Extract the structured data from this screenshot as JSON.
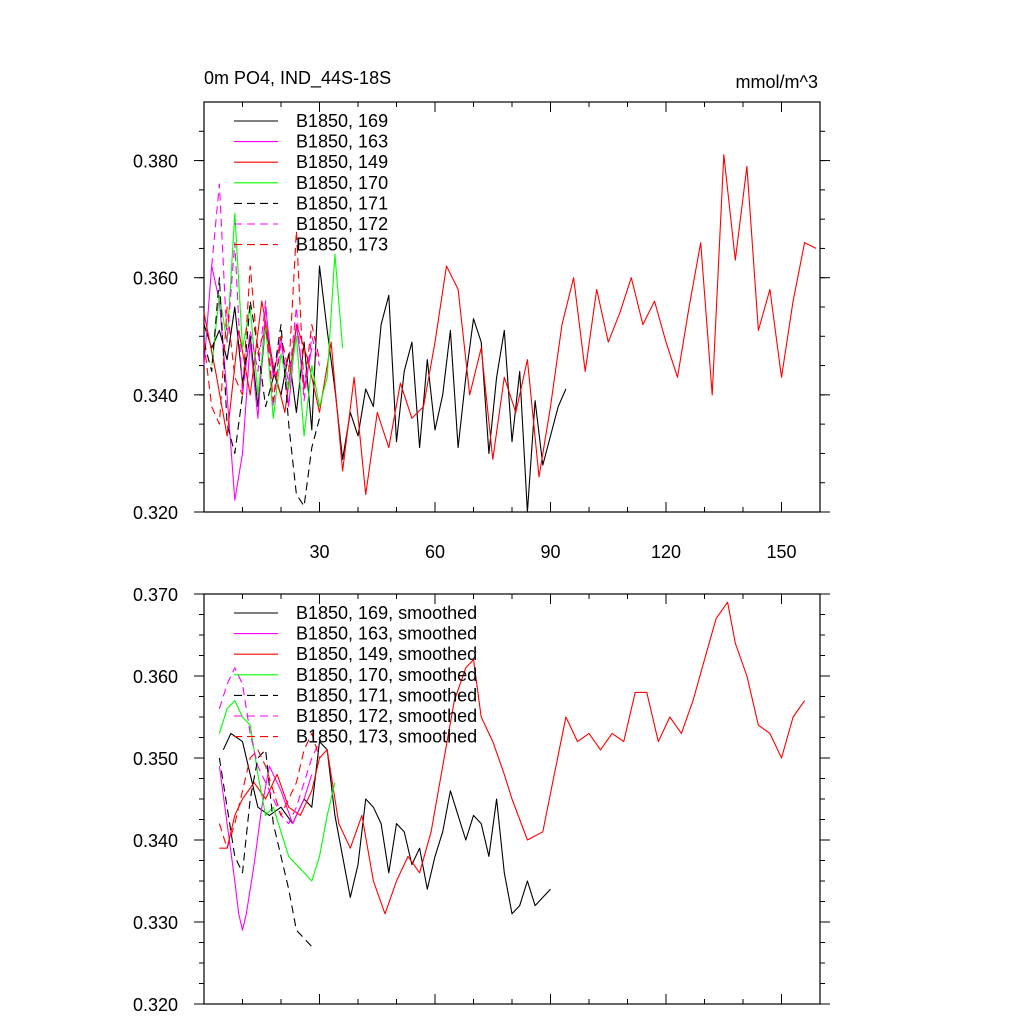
{
  "chart_data": [
    {
      "type": "line",
      "title": "0m PO4, IND_44S-18S",
      "units": "mmol/m^3",
      "xlim": [
        0,
        160
      ],
      "ylim": [
        0.32,
        0.39
      ],
      "xticks": [
        30,
        60,
        90,
        120,
        150
      ],
      "xtick_labels": [
        "30",
        "60",
        "90",
        "120",
        "150"
      ],
      "yticks": [
        0.32,
        0.34,
        0.36,
        0.38
      ],
      "ytick_labels": [
        "0.320",
        "0.340",
        "0.360",
        "0.380"
      ],
      "series": [
        {
          "name": "B1850, 169",
          "color": "#000000",
          "dash": "solid",
          "x": [
            0,
            2,
            4,
            6,
            8,
            10,
            12,
            14,
            16,
            18,
            20,
            22,
            24,
            26,
            28,
            30,
            32,
            34,
            36,
            38,
            40,
            42,
            44,
            46,
            48,
            50,
            52,
            54,
            56,
            58,
            60,
            62,
            64,
            66,
            68,
            70,
            72,
            74,
            76,
            78,
            80,
            82,
            84,
            86,
            88,
            90,
            92,
            94
          ],
          "y": [
            0.352,
            0.348,
            0.351,
            0.346,
            0.355,
            0.342,
            0.35,
            0.338,
            0.352,
            0.344,
            0.34,
            0.347,
            0.337,
            0.349,
            0.334,
            0.362,
            0.351,
            0.341,
            0.329,
            0.337,
            0.333,
            0.341,
            0.338,
            0.352,
            0.357,
            0.332,
            0.344,
            0.349,
            0.331,
            0.346,
            0.334,
            0.34,
            0.351,
            0.331,
            0.343,
            0.353,
            0.349,
            0.33,
            0.343,
            0.351,
            0.332,
            0.344,
            0.32,
            0.339,
            0.328,
            0.333,
            0.338,
            0.341
          ]
        },
        {
          "name": "B1850, 163",
          "color": "#ff00ff",
          "dash": "solid",
          "x": [
            0,
            2,
            4,
            6,
            8,
            10,
            12,
            14,
            16,
            18,
            20,
            22,
            24,
            26,
            28
          ],
          "y": [
            0.345,
            0.362,
            0.356,
            0.34,
            0.322,
            0.33,
            0.349,
            0.336,
            0.355,
            0.343,
            0.35,
            0.338,
            0.352,
            0.341,
            0.348
          ]
        },
        {
          "name": "B1850, 149",
          "color": "#ff0000",
          "dash": "solid",
          "x": [
            0,
            3,
            6,
            9,
            12,
            15,
            18,
            21,
            24,
            27,
            30,
            33,
            36,
            39,
            42,
            45,
            48,
            51,
            54,
            57,
            60,
            63,
            66,
            69,
            72,
            75,
            78,
            81,
            84,
            87,
            90,
            93,
            96,
            99,
            102,
            105,
            108,
            111,
            114,
            117,
            120,
            123,
            126,
            129,
            132,
            135,
            138,
            141,
            144,
            147,
            150,
            153,
            156,
            159
          ],
          "y": [
            0.354,
            0.344,
            0.333,
            0.351,
            0.34,
            0.356,
            0.345,
            0.337,
            0.352,
            0.346,
            0.337,
            0.349,
            0.327,
            0.343,
            0.323,
            0.337,
            0.331,
            0.342,
            0.336,
            0.338,
            0.349,
            0.362,
            0.358,
            0.34,
            0.348,
            0.329,
            0.343,
            0.337,
            0.346,
            0.326,
            0.338,
            0.352,
            0.36,
            0.344,
            0.358,
            0.349,
            0.354,
            0.36,
            0.352,
            0.356,
            0.349,
            0.343,
            0.355,
            0.366,
            0.34,
            0.381,
            0.363,
            0.379,
            0.351,
            0.358,
            0.343,
            0.356,
            0.366,
            0.365
          ]
        },
        {
          "name": "B1850, 170",
          "color": "#00ff00",
          "dash": "solid",
          "x": [
            2,
            4,
            6,
            8,
            10,
            12,
            14,
            16,
            18,
            20,
            22,
            24,
            26,
            28,
            30,
            32,
            34,
            36
          ],
          "y": [
            0.345,
            0.357,
            0.349,
            0.371,
            0.348,
            0.355,
            0.34,
            0.352,
            0.336,
            0.347,
            0.341,
            0.35,
            0.333,
            0.345,
            0.338,
            0.343,
            0.364,
            0.348
          ]
        },
        {
          "name": "B1850, 171",
          "color": "#000000",
          "dash": "dashed",
          "x": [
            0,
            2,
            4,
            6,
            8,
            10,
            12,
            14,
            16,
            18,
            20,
            22,
            24,
            26,
            28,
            30
          ],
          "y": [
            0.349,
            0.344,
            0.36,
            0.335,
            0.33,
            0.34,
            0.356,
            0.348,
            0.338,
            0.343,
            0.352,
            0.335,
            0.323,
            0.321,
            0.331,
            0.336
          ]
        },
        {
          "name": "B1850, 172",
          "color": "#ff00ff",
          "dash": "dashed",
          "x": [
            2,
            4,
            6,
            8,
            10,
            12,
            14,
            16,
            18,
            20,
            22,
            24,
            26,
            28,
            30
          ],
          "y": [
            0.362,
            0.376,
            0.349,
            0.366,
            0.34,
            0.351,
            0.344,
            0.356,
            0.338,
            0.349,
            0.342,
            0.355,
            0.339,
            0.35,
            0.345
          ]
        },
        {
          "name": "B1850, 173",
          "color": "#ff0000",
          "dash": "dashed",
          "x": [
            0,
            2,
            4,
            6,
            8,
            10,
            12,
            14,
            16,
            18,
            20,
            22,
            24,
            26,
            28,
            30
          ],
          "y": [
            0.349,
            0.338,
            0.335,
            0.355,
            0.343,
            0.34,
            0.362,
            0.347,
            0.352,
            0.339,
            0.35,
            0.344,
            0.368,
            0.341,
            0.352,
            0.346
          ]
        }
      ]
    },
    {
      "type": "line",
      "xlim": [
        0,
        160
      ],
      "ylim": [
        0.32,
        0.37
      ],
      "xticks": [
        30,
        60,
        90,
        120,
        150
      ],
      "yticks": [
        0.32,
        0.33,
        0.34,
        0.35,
        0.36,
        0.37
      ],
      "ytick_labels": [
        "0.320",
        "0.330",
        "0.340",
        "0.350",
        "0.360",
        "0.370"
      ],
      "series": [
        {
          "name": "B1850, 169, smoothed",
          "color": "#000000",
          "dash": "solid",
          "x": [
            5,
            7,
            10,
            12,
            14,
            17,
            20,
            23,
            26,
            28,
            30,
            32,
            34,
            36,
            38,
            40,
            42,
            44,
            46,
            48,
            50,
            52,
            54,
            56,
            58,
            60,
            62,
            64,
            66,
            68,
            70,
            72,
            74,
            76,
            78,
            80,
            82,
            84,
            86,
            88,
            90
          ],
          "y": [
            0.351,
            0.353,
            0.352,
            0.348,
            0.344,
            0.343,
            0.344,
            0.342,
            0.345,
            0.344,
            0.352,
            0.351,
            0.343,
            0.338,
            0.333,
            0.337,
            0.345,
            0.344,
            0.342,
            0.336,
            0.342,
            0.341,
            0.337,
            0.339,
            0.334,
            0.338,
            0.341,
            0.346,
            0.343,
            0.34,
            0.343,
            0.342,
            0.338,
            0.345,
            0.336,
            0.331,
            0.332,
            0.335,
            0.332,
            0.333,
            0.334
          ]
        },
        {
          "name": "B1850, 163, smoothed",
          "color": "#ff00ff",
          "dash": "solid",
          "x": [
            4,
            6,
            8,
            9,
            10,
            11,
            13,
            15,
            17,
            20,
            23,
            26,
            28
          ],
          "y": [
            0.349,
            0.342,
            0.335,
            0.331,
            0.329,
            0.331,
            0.337,
            0.344,
            0.349,
            0.346,
            0.342,
            0.345,
            0.348
          ]
        },
        {
          "name": "B1850, 149, smoothed",
          "color": "#ff0000",
          "dash": "solid",
          "x": [
            4,
            6,
            8,
            10,
            13,
            16,
            19,
            22,
            25,
            28,
            30,
            32,
            35,
            38,
            41,
            44,
            47,
            50,
            53,
            56,
            59,
            62,
            65,
            68,
            70,
            72,
            75,
            78,
            80,
            84,
            88,
            91,
            94,
            97,
            100,
            103,
            106,
            109,
            112,
            115,
            118,
            121,
            124,
            127,
            130,
            133,
            136,
            138,
            141,
            144,
            147,
            150,
            153,
            156
          ],
          "y": [
            0.339,
            0.339,
            0.343,
            0.345,
            0.347,
            0.345,
            0.348,
            0.344,
            0.343,
            0.346,
            0.35,
            0.351,
            0.342,
            0.339,
            0.343,
            0.335,
            0.331,
            0.335,
            0.338,
            0.336,
            0.341,
            0.349,
            0.357,
            0.361,
            0.362,
            0.355,
            0.352,
            0.348,
            0.345,
            0.34,
            0.341,
            0.348,
            0.355,
            0.352,
            0.353,
            0.351,
            0.353,
            0.352,
            0.358,
            0.358,
            0.352,
            0.355,
            0.353,
            0.357,
            0.362,
            0.367,
            0.369,
            0.364,
            0.36,
            0.354,
            0.353,
            0.35,
            0.355,
            0.357
          ]
        },
        {
          "name": "B1850, 170, smoothed",
          "color": "#00ff00",
          "dash": "solid",
          "x": [
            4,
            6,
            8,
            10,
            12,
            14,
            16,
            18,
            20,
            22,
            24,
            26,
            28,
            30,
            32,
            34
          ],
          "y": [
            0.353,
            0.356,
            0.357,
            0.355,
            0.354,
            0.348,
            0.343,
            0.344,
            0.341,
            0.338,
            0.337,
            0.336,
            0.335,
            0.338,
            0.343,
            0.347
          ]
        },
        {
          "name": "B1850, 171, smoothed",
          "color": "#000000",
          "dash": "dashed",
          "x": [
            4,
            6,
            8,
            10,
            12,
            14,
            16,
            18,
            20,
            22,
            24,
            26,
            28
          ],
          "y": [
            0.35,
            0.344,
            0.338,
            0.336,
            0.345,
            0.35,
            0.351,
            0.342,
            0.338,
            0.334,
            0.329,
            0.328,
            0.327
          ]
        },
        {
          "name": "B1850, 172, smoothed",
          "color": "#ff00ff",
          "dash": "dashed",
          "x": [
            4,
            6,
            8,
            10,
            12,
            14,
            16,
            18,
            20,
            22,
            24,
            26,
            28,
            30
          ],
          "y": [
            0.356,
            0.359,
            0.361,
            0.359,
            0.353,
            0.349,
            0.347,
            0.345,
            0.343,
            0.342,
            0.344,
            0.347,
            0.35,
            0.352
          ]
        },
        {
          "name": "B1850, 173, smoothed",
          "color": "#ff0000",
          "dash": "dashed",
          "x": [
            4,
            6,
            8,
            10,
            12,
            14,
            16,
            18,
            20,
            22,
            24,
            26,
            28,
            30
          ],
          "y": [
            0.342,
            0.339,
            0.342,
            0.346,
            0.35,
            0.351,
            0.349,
            0.346,
            0.343,
            0.345,
            0.347,
            0.351,
            0.353,
            0.35
          ]
        }
      ]
    }
  ]
}
